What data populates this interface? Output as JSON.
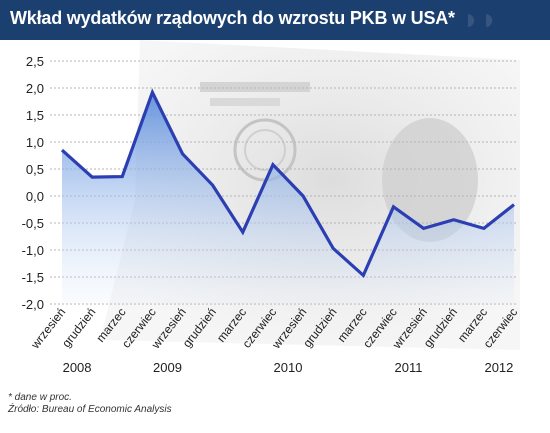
{
  "header": {
    "title": "Wkład wydatków rządowych do wzrostu PKB w USA*"
  },
  "colors": {
    "header_bg": "#1b3f6e",
    "line": "#2b3fb2",
    "area_top": "#5f8fdc",
    "grid": "#b5b5b5"
  },
  "chart_data": {
    "type": "area",
    "title": "Wkład wydatków rządowych do wzrostu PKB w USA*",
    "categories": [
      "wrzesień",
      "grudzień",
      "marzec",
      "czerwiec",
      "wrzesień",
      "grudzień",
      "marzec",
      "czerwiec",
      "wrzesień",
      "grudzień",
      "marzec",
      "czerwiec",
      "wrzesień",
      "grudzień",
      "marzec",
      "czerwiec"
    ],
    "years": [
      {
        "label": "2008",
        "category_index": 0.5
      },
      {
        "label": "2009",
        "category_index": 3.5
      },
      {
        "label": "2010",
        "category_index": 7.5
      },
      {
        "label": "2011",
        "category_index": 11.5
      },
      {
        "label": "2012",
        "category_index": 14.5
      }
    ],
    "series": [
      {
        "values": [
          0.85,
          0.35,
          0.36,
          1.92,
          0.78,
          0.2,
          -0.67,
          0.58,
          0.0,
          -0.97,
          -1.47,
          -0.2,
          -0.6,
          -0.44,
          -0.6,
          -0.16
        ]
      }
    ],
    "ylim": [
      -2.0,
      2.5
    ],
    "yticks": [
      "2,5",
      "2,0",
      "1,5",
      "1,0",
      "0,5",
      "0,0",
      "-0,5",
      "-1,0",
      "-1,5",
      "-2,0"
    ],
    "grid": true,
    "xlabel": "",
    "ylabel": ""
  },
  "footer": {
    "note": "* dane w proc.",
    "source": "Źródło: Bureau of Economic Analysis"
  }
}
